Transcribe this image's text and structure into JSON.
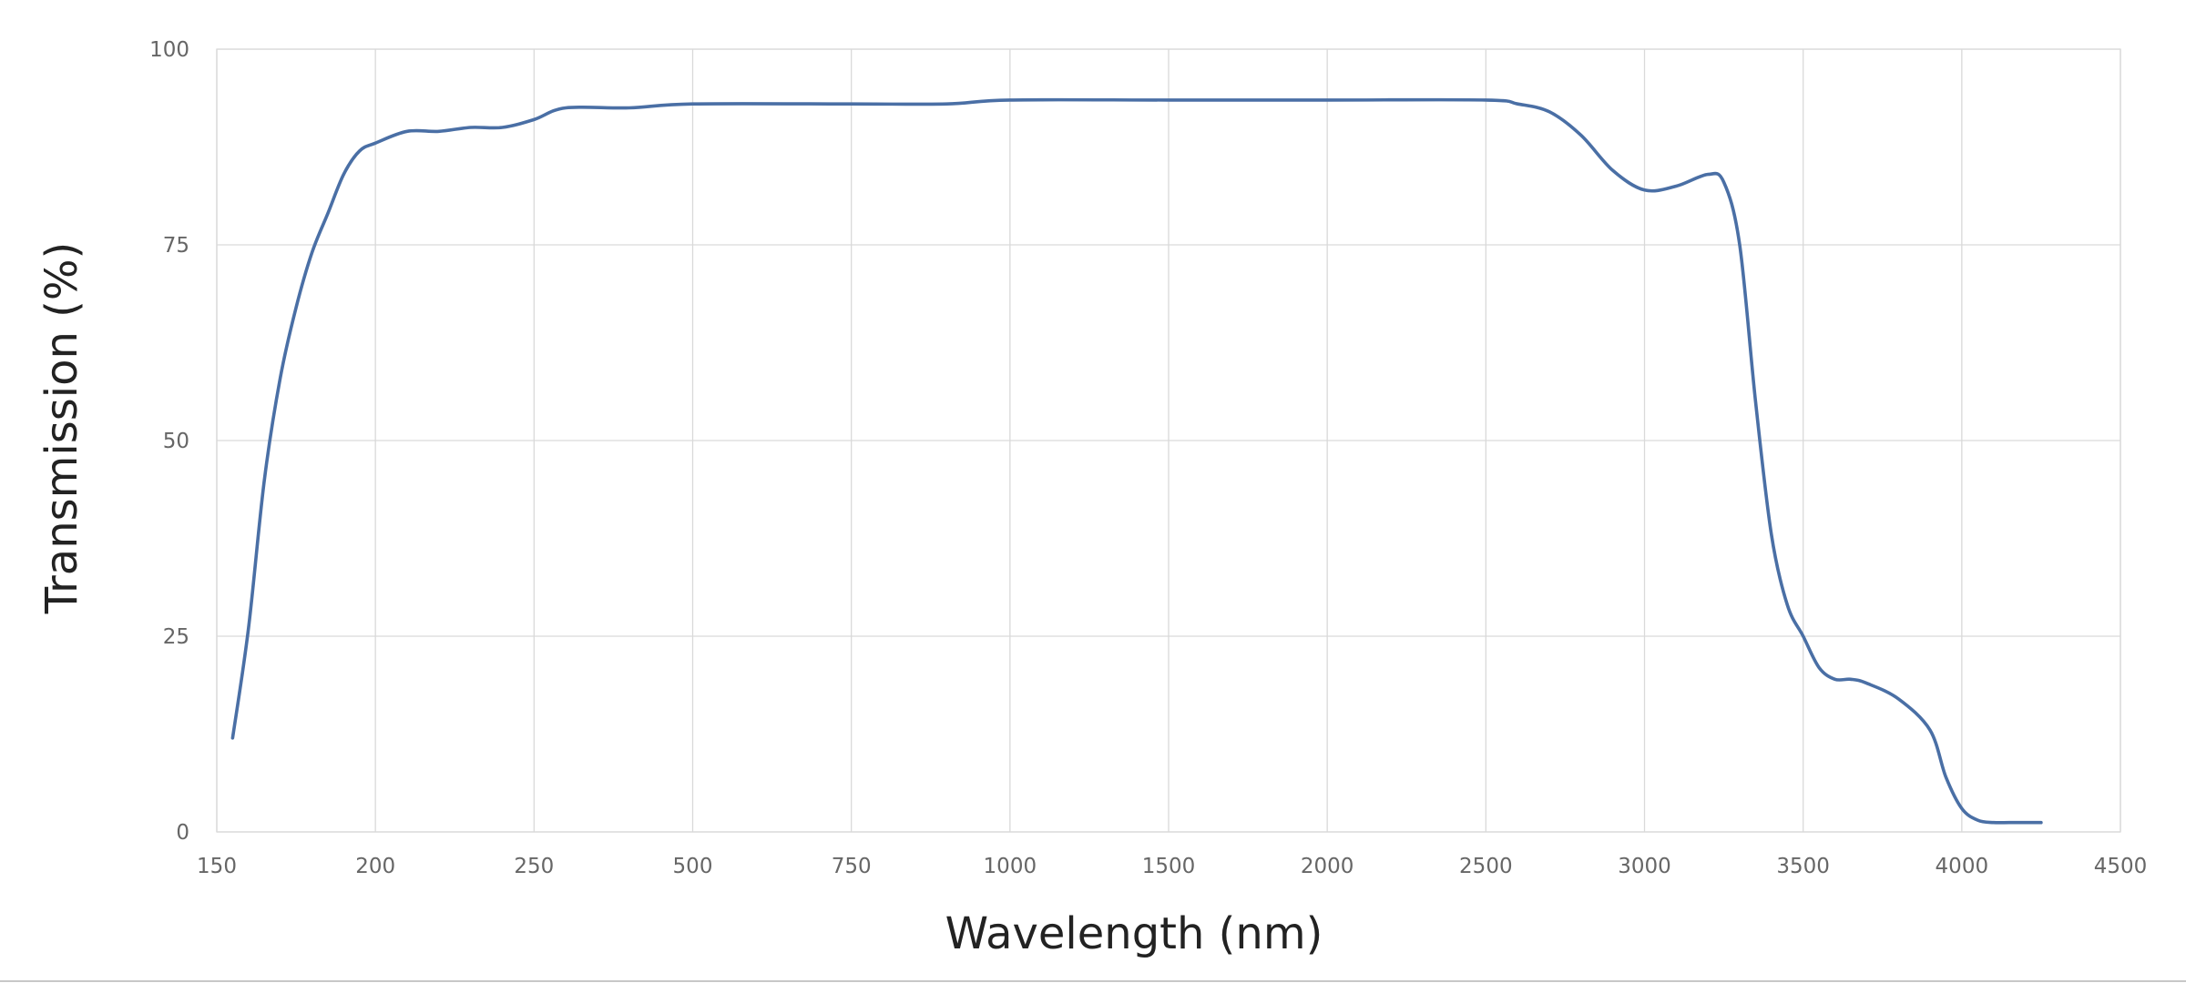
{
  "chart_data": {
    "type": "line",
    "title": "",
    "xlabel": "Wavelength (nm)",
    "ylabel": "Transmission (%)",
    "x_tick_labels": [
      "150",
      "200",
      "250",
      "500",
      "750",
      "1000",
      "1500",
      "2000",
      "2500",
      "3000",
      "3500",
      "4000",
      "4500"
    ],
    "y_tick_labels": [
      "0",
      "25",
      "50",
      "75",
      "100"
    ],
    "ylim": [
      0,
      100
    ],
    "grid": true,
    "legend": "none",
    "line_color": "#4a6fa5",
    "series": [
      {
        "x": [
          155,
          160,
          165,
          170,
          175,
          180,
          185,
          190,
          195,
          200,
          210,
          220,
          230,
          240,
          250,
          300,
          400,
          500,
          750,
          900,
          1000,
          1500,
          2000,
          2500,
          2600,
          2700,
          2800,
          2900,
          3000,
          3100,
          3200,
          3250,
          3300,
          3350,
          3400,
          3450,
          3500,
          3550,
          3600,
          3650,
          3700,
          3800,
          3900,
          3950,
          4000,
          4050,
          4100,
          4150,
          4200,
          4250
        ],
        "y": [
          12,
          26,
          45,
          58,
          67,
          74,
          79,
          84,
          87,
          88,
          89.5,
          89.5,
          90,
          90,
          91,
          92.5,
          92.5,
          93,
          93,
          93,
          93.5,
          93.5,
          93.5,
          93.5,
          93,
          92,
          89,
          84.5,
          82,
          82.5,
          84,
          83,
          75,
          55,
          38,
          29,
          25,
          21,
          19.5,
          19.5,
          19,
          17,
          13,
          7,
          3,
          1.5,
          1.2,
          1.2,
          1.2,
          1.2
        ]
      }
    ]
  }
}
